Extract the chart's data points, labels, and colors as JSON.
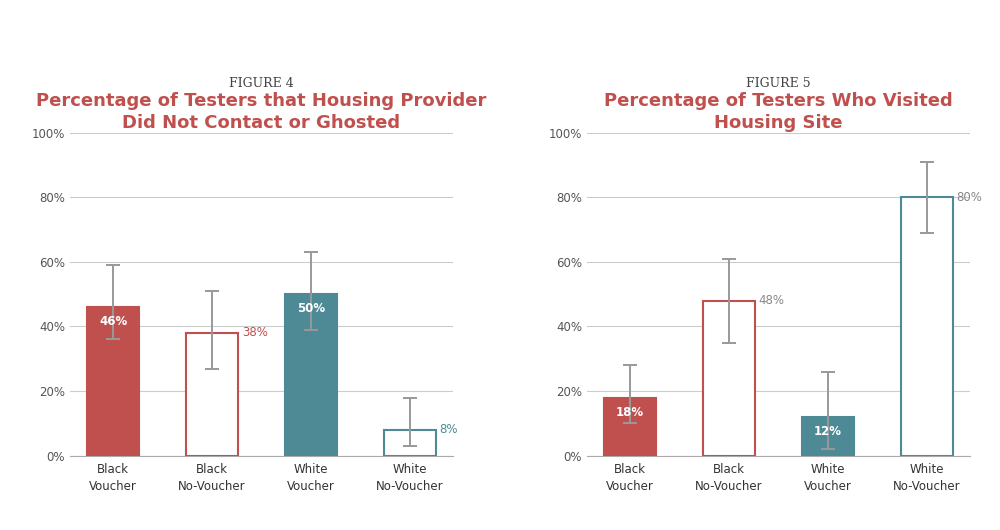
{
  "fig4": {
    "figure_label": "FIGURE 4",
    "title_line1": "Percentage of Testers that Housing Provider",
    "title_line2": "Did Not Contact or Ghosted",
    "categories": [
      "Black\nVoucher",
      "Black\nNo-Voucher",
      "White\nVoucher",
      "White\nNo-Voucher"
    ],
    "values": [
      46,
      38,
      50,
      8
    ],
    "errors_upper": [
      13,
      13,
      13,
      10
    ],
    "errors_lower": [
      10,
      11,
      11,
      5
    ],
    "bar_edge_colors": [
      "#c0504d",
      "#c0504d",
      "#4e8a96",
      "#4e8a96"
    ],
    "filled": [
      true,
      false,
      true,
      false
    ],
    "fill_colors": [
      "#c0504d",
      "#ffffff",
      "#4e8a96",
      "#ffffff"
    ],
    "label_colors": [
      "#ffffff",
      "#c0504d",
      "#ffffff",
      "#4e8a96"
    ]
  },
  "fig5": {
    "figure_label": "FIGURE 5",
    "title_line1": "Percentage of Testers Who Visited",
    "title_line2": "Housing Site",
    "categories": [
      "Black\nVoucher",
      "Black\nNo-Voucher",
      "White\nVoucher",
      "White\nNo-Voucher"
    ],
    "values": [
      18,
      48,
      12,
      80
    ],
    "errors_upper": [
      10,
      13,
      14,
      11
    ],
    "errors_lower": [
      8,
      13,
      10,
      11
    ],
    "bar_edge_colors": [
      "#c0504d",
      "#c0504d",
      "#4e8a96",
      "#4e8a96"
    ],
    "filled": [
      true,
      false,
      true,
      false
    ],
    "fill_colors": [
      "#c0504d",
      "#ffffff",
      "#4e8a96",
      "#ffffff"
    ],
    "label_colors": [
      "#ffffff",
      "#888888",
      "#ffffff",
      "#888888"
    ]
  },
  "figure_label_color": "#444444",
  "title_color": "#c0504d",
  "figure_label_fontsize": 9,
  "title_fontsize": 13,
  "background_color": "#ffffff",
  "ylim": [
    0,
    100
  ],
  "yticks": [
    0,
    20,
    40,
    60,
    80,
    100
  ],
  "yticklabels": [
    "0%",
    "20%",
    "40%",
    "60%",
    "80%",
    "100%"
  ],
  "bar_width": 0.52,
  "error_color": "#999999",
  "error_linewidth": 1.4,
  "error_capsize": 5
}
